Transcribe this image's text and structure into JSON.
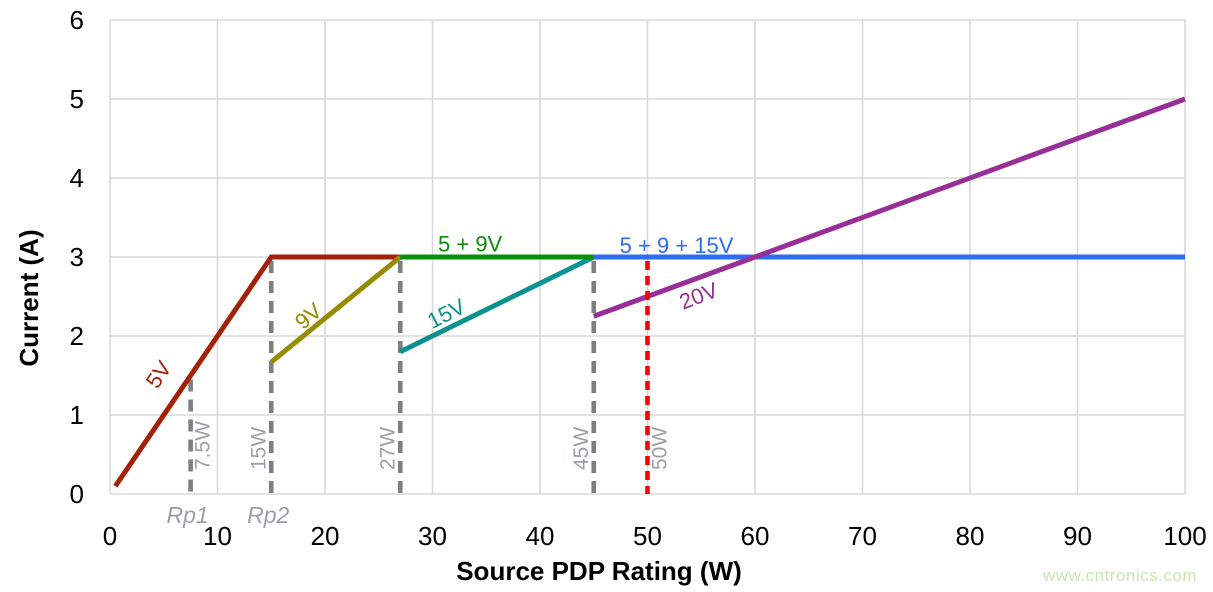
{
  "watermark": {
    "text": "www.cntronics.com",
    "color": "#C8E6B4"
  },
  "chart_data": {
    "type": "line",
    "title": "",
    "xlabel": "Source PDP Rating (W)",
    "ylabel": "Current (A)",
    "xlim": [
      0,
      100
    ],
    "ylim": [
      0,
      6
    ],
    "xticks": [
      0,
      10,
      20,
      30,
      40,
      50,
      60,
      70,
      80,
      90,
      100
    ],
    "yticks": [
      0,
      1,
      2,
      3,
      4,
      5,
      6
    ],
    "grid": true,
    "grid_color": "#D9D9D9",
    "tick_color": "#000000",
    "marker_label_color": "#98A0A8",
    "series": [
      {
        "name": "5V",
        "color": "#A32109",
        "points": [
          [
            0.5,
            0.1
          ],
          [
            15,
            3
          ],
          [
            27,
            3
          ]
        ],
        "label": {
          "text": "5V",
          "x": 5.1,
          "y": 1.56,
          "rotation": -56
        }
      },
      {
        "name": "9V",
        "color": "#958C00",
        "points": [
          [
            15,
            1.67
          ],
          [
            27,
            3
          ]
        ],
        "label": {
          "text": "9V",
          "x": 18.9,
          "y": 2.28,
          "rotation": -40
        }
      },
      {
        "name": "15V",
        "color": "#0A9292",
        "points": [
          [
            27,
            1.8
          ],
          [
            45,
            3
          ]
        ],
        "label": {
          "text": "15V",
          "x": 31.6,
          "y": 2.3,
          "rotation": -27
        }
      },
      {
        "name": "5 + 9V",
        "color": "#0A8F0A",
        "points": [
          [
            27,
            3
          ],
          [
            45,
            3
          ]
        ],
        "label": {
          "text": "5 + 9V",
          "x": 33.5,
          "y": 3.17,
          "rotation": 0
        }
      },
      {
        "name": "5 + 9 + 15V",
        "color": "#2E6CF3",
        "points": [
          [
            45,
            3
          ],
          [
            100,
            3
          ]
        ],
        "label": {
          "text": "5 + 9 + 15V",
          "x": 52.7,
          "y": 3.15,
          "rotation": 0
        }
      },
      {
        "name": "20V",
        "color": "#972F97",
        "points": [
          [
            45,
            2.25
          ],
          [
            100,
            5
          ]
        ],
        "label": {
          "text": "20V",
          "x": 55.0,
          "y": 2.52,
          "rotation": -21
        }
      }
    ],
    "markers": [
      {
        "label": "7.5W",
        "x": 7.5,
        "top": 1.5,
        "color": "#7F7F7F",
        "style": "dashed",
        "label_side": "right",
        "axis_label": "Rp1",
        "layer": "back"
      },
      {
        "label": "15W",
        "x": 15,
        "top": 3,
        "color": "#7F7F7F",
        "style": "dashed",
        "label_side": "left",
        "axis_label": "Rp2",
        "layer": "back"
      },
      {
        "label": "27W",
        "x": 27,
        "top": 3,
        "color": "#7F7F7F",
        "style": "dashed",
        "label_side": "left",
        "axis_label": "",
        "layer": "back"
      },
      {
        "label": "45W",
        "x": 45,
        "top": 3,
        "color": "#7F7F7F",
        "style": "dashed",
        "label_side": "left",
        "axis_label": "",
        "layer": "back"
      },
      {
        "label": "50W",
        "x": 50,
        "top": 3,
        "color": "#FF0000",
        "style": "dashed",
        "label_side": "right",
        "axis_label": "",
        "layer": "front"
      }
    ]
  }
}
